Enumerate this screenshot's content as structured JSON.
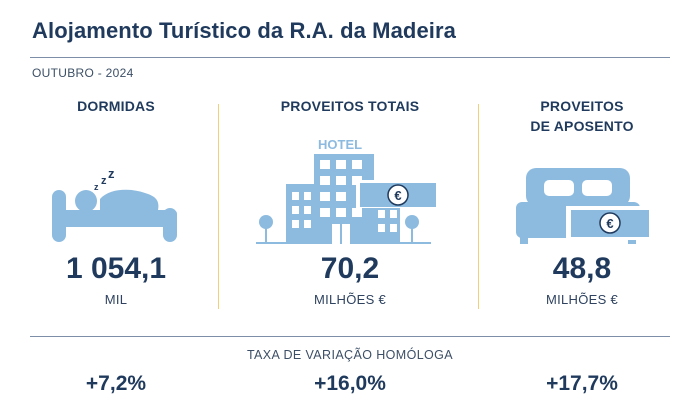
{
  "header": {
    "title": "Alojamento Turístico da R.A. da Madeira",
    "period": "OUTUBRO - 2024"
  },
  "colors": {
    "navy": "#1f3a5c",
    "icon_blue": "#8dbbe0",
    "divider_gold": "#f2d07a"
  },
  "indicators": [
    {
      "head_line1": "DORMIDAS",
      "head_line2": "",
      "value": "1 054,1",
      "unit": "MIL",
      "change": "+7,2%",
      "icon": "sleeping-person-icon"
    },
    {
      "head_line1": "PROVEITOS TOTAIS",
      "head_line2": "",
      "value": "70,2",
      "unit": "MILHÕES €",
      "change": "+16,0%",
      "icon": "hotel-building-icon",
      "icon_label": "HOTEL",
      "currency_symbol": "€"
    },
    {
      "head_line1": "PROVEITOS",
      "head_line2": "DE APOSENTO",
      "value": "48,8",
      "unit": "MILHÕES €",
      "change": "+17,7%",
      "icon": "bed-with-banknote-icon",
      "currency_symbol": "€"
    }
  ],
  "variation": {
    "title": "TAXA DE VARIAÇÃO HOMÓLOGA"
  }
}
